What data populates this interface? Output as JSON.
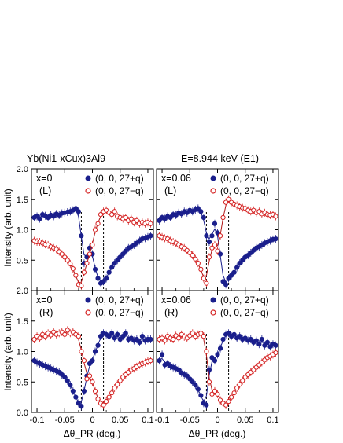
{
  "figure": {
    "title_compound": "Yb(Ni1-xCux)3Al9",
    "title_energy": "E=8.944 keV (E1)"
  },
  "axes": {
    "ylabel": "Intensity (arb. unit)",
    "xlabel": "Δθ_PR (deg.)",
    "x_ticks": [
      "-0.1",
      "-0.05",
      "0",
      "0.05",
      "0.1"
    ],
    "y_ticks": [
      "0.0",
      "0.5",
      "1.0",
      "1.5",
      "2.0"
    ]
  },
  "colors": {
    "plus": "#1a1f8c",
    "minus": "#d42020",
    "fit_plus": "#1a1f8c",
    "fit_minus": "#b01818"
  },
  "chart_data": [
    {
      "type": "scatter",
      "panel": "top-left",
      "label_x": "x=0",
      "label_pol": "(L)",
      "legend_plus": "(0, 0, 27+q)",
      "legend_minus": "(0, 0, 27−q)",
      "xlim": [
        -0.11,
        0.11
      ],
      "ylim": [
        0,
        2.0
      ],
      "dashed_lines_x": [
        -0.02,
        0.02
      ],
      "series": [
        {
          "name": "(0, 0, 27+q)",
          "marker": "filled-circle",
          "x": [
            -0.105,
            -0.1,
            -0.095,
            -0.09,
            -0.085,
            -0.08,
            -0.075,
            -0.07,
            -0.065,
            -0.06,
            -0.055,
            -0.05,
            -0.045,
            -0.04,
            -0.035,
            -0.03,
            -0.025,
            -0.02,
            -0.015,
            -0.01,
            -0.005,
            0,
            0.005,
            0.01,
            0.015,
            0.02,
            0.025,
            0.03,
            0.035,
            0.04,
            0.045,
            0.05,
            0.055,
            0.06,
            0.065,
            0.07,
            0.075,
            0.08,
            0.085,
            0.09,
            0.095,
            0.1,
            0.105
          ],
          "y": [
            1.2,
            1.22,
            1.18,
            1.25,
            1.23,
            1.2,
            1.24,
            1.22,
            1.26,
            1.24,
            1.27,
            1.28,
            1.29,
            1.3,
            1.32,
            1.35,
            1.3,
            0.9,
            0.45,
            0.55,
            0.7,
            0.6,
            0.35,
            0.2,
            0.12,
            0.15,
            0.2,
            0.3,
            0.38,
            0.45,
            0.5,
            0.55,
            0.6,
            0.65,
            0.7,
            0.72,
            0.75,
            0.78,
            0.82,
            0.85,
            0.86,
            0.88,
            0.9
          ]
        },
        {
          "name": "(0, 0, 27−q)",
          "marker": "open-circle",
          "x": [
            -0.105,
            -0.1,
            -0.095,
            -0.09,
            -0.085,
            -0.08,
            -0.075,
            -0.07,
            -0.065,
            -0.06,
            -0.055,
            -0.05,
            -0.045,
            -0.04,
            -0.035,
            -0.03,
            -0.025,
            -0.02,
            -0.015,
            -0.01,
            -0.005,
            0,
            0.005,
            0.01,
            0.015,
            0.02,
            0.025,
            0.03,
            0.035,
            0.04,
            0.045,
            0.05,
            0.055,
            0.06,
            0.065,
            0.07,
            0.075,
            0.08,
            0.085,
            0.09,
            0.095,
            0.1,
            0.105
          ],
          "y": [
            0.82,
            0.8,
            0.8,
            0.78,
            0.76,
            0.75,
            0.72,
            0.7,
            0.68,
            0.64,
            0.6,
            0.55,
            0.5,
            0.44,
            0.36,
            0.25,
            0.1,
            0.08,
            0.3,
            0.45,
            0.6,
            0.75,
            1.0,
            1.1,
            1.25,
            1.3,
            1.32,
            1.28,
            1.25,
            1.3,
            1.22,
            1.2,
            1.18,
            1.2,
            1.15,
            1.18,
            1.12,
            1.15,
            1.1,
            1.12,
            1.1,
            1.12,
            1.1
          ]
        }
      ]
    },
    {
      "type": "scatter",
      "panel": "top-right",
      "label_x": "x=0.06",
      "label_pol": "(L)",
      "legend_plus": "(0, 0, 27+q)",
      "legend_minus": "(0, 0, 27−q)",
      "xlim": [
        -0.11,
        0.11
      ],
      "ylim": [
        0,
        2.0
      ],
      "dashed_lines_x": [
        -0.02,
        0.02
      ],
      "series": [
        {
          "name": "(0, 0, 27+q)",
          "marker": "filled-circle",
          "x": [
            -0.105,
            -0.1,
            -0.095,
            -0.09,
            -0.085,
            -0.08,
            -0.075,
            -0.07,
            -0.065,
            -0.06,
            -0.055,
            -0.05,
            -0.045,
            -0.04,
            -0.035,
            -0.03,
            -0.025,
            -0.02,
            -0.015,
            -0.01,
            -0.005,
            0,
            0.005,
            0.01,
            0.015,
            0.02,
            0.025,
            0.03,
            0.035,
            0.04,
            0.045,
            0.05,
            0.055,
            0.06,
            0.065,
            0.07,
            0.075,
            0.08,
            0.085,
            0.09,
            0.095,
            0.1,
            0.105
          ],
          "y": [
            1.15,
            1.2,
            1.18,
            1.22,
            1.2,
            1.25,
            1.24,
            1.28,
            1.26,
            1.3,
            1.28,
            1.32,
            1.3,
            1.33,
            1.35,
            1.3,
            1.2,
            0.9,
            0.8,
            0.9,
            1.1,
            0.95,
            0.6,
            0.15,
            0.1,
            0.2,
            0.25,
            0.3,
            0.38,
            0.45,
            0.5,
            0.55,
            0.58,
            0.62,
            0.66,
            0.7,
            0.72,
            0.75,
            0.78,
            0.8,
            0.82,
            0.84,
            0.85
          ]
        },
        {
          "name": "(0, 0, 27−q)",
          "marker": "open-circle",
          "x": [
            -0.105,
            -0.1,
            -0.095,
            -0.09,
            -0.085,
            -0.08,
            -0.075,
            -0.07,
            -0.065,
            -0.06,
            -0.055,
            -0.05,
            -0.045,
            -0.04,
            -0.035,
            -0.03,
            -0.025,
            -0.02,
            -0.015,
            -0.01,
            -0.005,
            0,
            0.005,
            0.01,
            0.015,
            0.02,
            0.025,
            0.03,
            0.035,
            0.04,
            0.045,
            0.05,
            0.055,
            0.06,
            0.065,
            0.07,
            0.075,
            0.08,
            0.085,
            0.09,
            0.095,
            0.1,
            0.105
          ],
          "y": [
            0.9,
            0.88,
            0.86,
            0.85,
            0.82,
            0.8,
            0.78,
            0.75,
            0.72,
            0.7,
            0.66,
            0.62,
            0.58,
            0.52,
            0.45,
            0.35,
            0.2,
            0.12,
            0.55,
            0.7,
            0.75,
            0.65,
            0.9,
            1.2,
            1.45,
            1.5,
            1.45,
            1.42,
            1.4,
            1.38,
            1.36,
            1.35,
            1.32,
            1.3,
            1.32,
            1.28,
            1.3,
            1.26,
            1.28,
            1.25,
            1.24,
            1.25,
            1.22
          ]
        }
      ]
    },
    {
      "type": "scatter",
      "panel": "bottom-left",
      "label_x": "x=0",
      "label_pol": "(R)",
      "legend_plus": "(0, 0, 27+q)",
      "legend_minus": "(0, 0, 27−q)",
      "xlim": [
        -0.11,
        0.11
      ],
      "ylim": [
        0,
        2.0
      ],
      "dashed_lines_x": [
        -0.02,
        0.02
      ],
      "series": [
        {
          "name": "(0, 0, 27+q)",
          "marker": "filled-circle",
          "x": [
            -0.105,
            -0.1,
            -0.095,
            -0.09,
            -0.085,
            -0.08,
            -0.075,
            -0.07,
            -0.065,
            -0.06,
            -0.055,
            -0.05,
            -0.045,
            -0.04,
            -0.035,
            -0.03,
            -0.025,
            -0.02,
            -0.015,
            -0.01,
            -0.005,
            0,
            0.005,
            0.01,
            0.015,
            0.02,
            0.025,
            0.03,
            0.035,
            0.04,
            0.045,
            0.05,
            0.055,
            0.06,
            0.065,
            0.07,
            0.075,
            0.08,
            0.085,
            0.09,
            0.095,
            0.1,
            0.105
          ],
          "y": [
            0.85,
            0.82,
            0.8,
            0.78,
            0.76,
            0.74,
            0.72,
            0.7,
            0.68,
            0.66,
            0.62,
            0.58,
            0.52,
            0.45,
            0.35,
            0.25,
            0.15,
            0.1,
            0.35,
            0.6,
            0.8,
            0.85,
            1.0,
            1.1,
            1.25,
            1.3,
            1.28,
            1.25,
            1.3,
            1.22,
            1.28,
            1.2,
            1.25,
            1.3,
            1.2,
            1.22,
            1.18,
            1.2,
            1.15,
            1.25,
            1.18,
            1.2,
            1.2
          ]
        },
        {
          "name": "(0, 0, 27−q)",
          "marker": "open-circle",
          "x": [
            -0.105,
            -0.1,
            -0.095,
            -0.09,
            -0.085,
            -0.08,
            -0.075,
            -0.07,
            -0.065,
            -0.06,
            -0.055,
            -0.05,
            -0.045,
            -0.04,
            -0.035,
            -0.03,
            -0.025,
            -0.02,
            -0.015,
            -0.01,
            -0.005,
            0,
            0.005,
            0.01,
            0.015,
            0.02,
            0.025,
            0.03,
            0.035,
            0.04,
            0.045,
            0.05,
            0.055,
            0.06,
            0.065,
            0.07,
            0.075,
            0.08,
            0.085,
            0.09,
            0.095,
            0.1,
            0.105
          ],
          "y": [
            1.2,
            1.25,
            1.22,
            1.28,
            1.25,
            1.3,
            1.27,
            1.32,
            1.28,
            1.3,
            1.32,
            1.28,
            1.35,
            1.3,
            1.32,
            1.28,
            1.25,
            1.0,
            0.85,
            0.55,
            0.6,
            0.5,
            0.35,
            0.22,
            0.15,
            0.12,
            0.18,
            0.25,
            0.32,
            0.4,
            0.46,
            0.52,
            0.58,
            0.62,
            0.66,
            0.7,
            0.72,
            0.75,
            0.78,
            0.8,
            0.82,
            0.84,
            0.85
          ]
        }
      ]
    },
    {
      "type": "scatter",
      "panel": "bottom-right",
      "label_x": "x=0.06",
      "label_pol": "(R)",
      "legend_plus": "(0, 0, 27+q)",
      "legend_minus": "(0, 0, 27−q)",
      "xlim": [
        -0.11,
        0.11
      ],
      "ylim": [
        0,
        2.0
      ],
      "dashed_lines_x": [
        -0.02,
        0.02
      ],
      "series": [
        {
          "name": "(0, 0, 27+q)",
          "marker": "filled-circle",
          "x": [
            -0.105,
            -0.1,
            -0.095,
            -0.09,
            -0.085,
            -0.08,
            -0.075,
            -0.07,
            -0.065,
            -0.06,
            -0.055,
            -0.05,
            -0.045,
            -0.04,
            -0.035,
            -0.03,
            -0.025,
            -0.02,
            -0.015,
            -0.01,
            -0.005,
            0,
            0.005,
            0.01,
            0.015,
            0.02,
            0.025,
            0.03,
            0.035,
            0.04,
            0.045,
            0.05,
            0.055,
            0.06,
            0.065,
            0.07,
            0.075,
            0.08,
            0.085,
            0.09,
            0.095,
            0.1,
            0.105
          ],
          "y": [
            0.85,
            0.95,
            0.78,
            0.8,
            0.76,
            0.74,
            0.72,
            0.7,
            0.65,
            0.62,
            0.6,
            0.55,
            0.5,
            0.45,
            0.38,
            0.28,
            0.15,
            0.12,
            0.7,
            0.9,
            0.85,
            0.95,
            1.05,
            1.2,
            1.28,
            1.3,
            1.25,
            1.28,
            1.22,
            1.25,
            1.2,
            1.22,
            1.18,
            1.2,
            1.15,
            1.18,
            1.12,
            1.2,
            1.1,
            1.15,
            1.08,
            1.12,
            1.1
          ]
        },
        {
          "name": "(0, 0, 27−q)",
          "marker": "open-circle",
          "x": [
            -0.105,
            -0.1,
            -0.095,
            -0.09,
            -0.085,
            -0.08,
            -0.075,
            -0.07,
            -0.065,
            -0.06,
            -0.055,
            -0.05,
            -0.045,
            -0.04,
            -0.035,
            -0.03,
            -0.025,
            -0.02,
            -0.015,
            -0.01,
            -0.005,
            0,
            0.005,
            0.01,
            0.015,
            0.02,
            0.025,
            0.03,
            0.035,
            0.04,
            0.045,
            0.05,
            0.055,
            0.06,
            0.065,
            0.07,
            0.075,
            0.08,
            0.085,
            0.09,
            0.095,
            0.1,
            0.105
          ],
          "y": [
            1.2,
            1.22,
            1.18,
            1.25,
            1.22,
            1.2,
            1.26,
            1.22,
            1.28,
            1.24,
            1.22,
            1.26,
            1.3,
            1.25,
            1.28,
            1.3,
            1.25,
            1.0,
            0.5,
            0.3,
            0.35,
            0.3,
            0.2,
            0.15,
            0.12,
            0.18,
            0.25,
            0.32,
            0.4,
            0.46,
            0.52,
            0.58,
            0.62,
            0.66,
            0.7,
            0.74,
            0.78,
            0.82,
            0.86,
            0.9,
            0.92,
            0.95,
            0.98
          ]
        }
      ]
    }
  ]
}
